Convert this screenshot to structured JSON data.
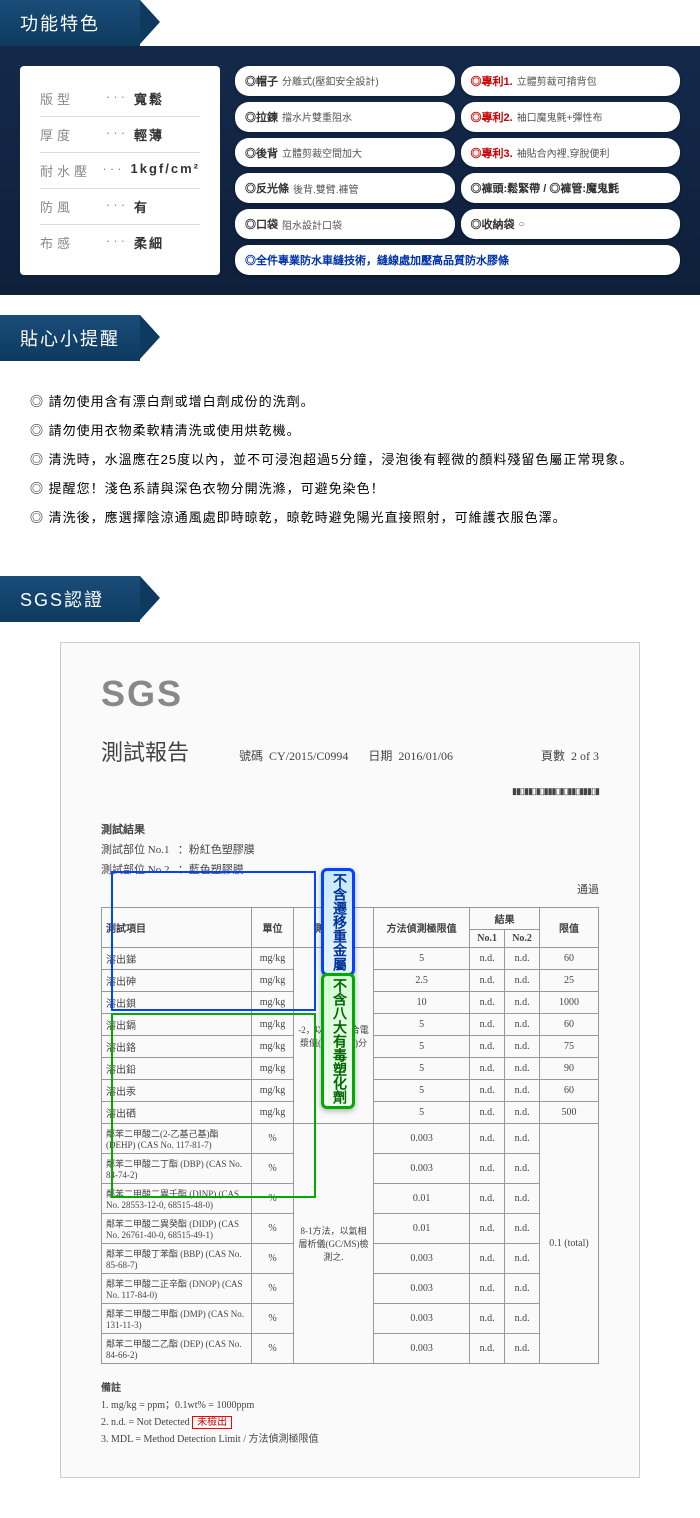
{
  "sections": {
    "features_title": "功能特色",
    "tips_title": "貼心小提醒",
    "sgs_title": "SGS認證"
  },
  "specs": [
    {
      "label": "版型",
      "value": "寬鬆"
    },
    {
      "label": "厚度",
      "value": "輕薄"
    },
    {
      "label": "耐水壓",
      "value": "1kgf/cm²"
    },
    {
      "label": "防風",
      "value": "有"
    },
    {
      "label": "布感",
      "value": "柔細"
    }
  ],
  "features_left": [
    {
      "t1": "◎帽子",
      "t2": "分離式(壓釦安全設計)"
    },
    {
      "t1": "◎拉鍊",
      "t2": "擋水片雙重阻水"
    },
    {
      "t1": "◎後背",
      "t2": "立體剪裁空間加大"
    },
    {
      "t1": "◎反光條",
      "t2": "後背.雙臂.褲管"
    },
    {
      "t1": "◎口袋",
      "t2": "阻水設計口袋"
    }
  ],
  "features_right": [
    {
      "t1": "◎專利1.",
      "t2": "立體剪裁可揹背包",
      "red": true
    },
    {
      "t1": "◎專利2.",
      "t2": "袖口魔鬼氈+彈性布",
      "red": true
    },
    {
      "t1": "◎專利3.",
      "t2": "袖貼合內裡,穿脫便利",
      "red": true
    },
    {
      "t1": "◎褲頭:鬆緊帶 / ◎褲管:魔鬼氈",
      "t2": ""
    },
    {
      "t1": "◎收納袋",
      "t2": "○"
    }
  ],
  "feature_wide": "◎全件專業防水車縫技術，縫線處加壓高品質防水膠條",
  "tips": [
    "請勿使用含有漂白劑或增白劑成份的洗劑。",
    "請勿使用衣物柔軟精清洗或使用烘乾機。",
    "清洗時，水溫應在25度以內，並不可浸泡超過5分鐘，浸泡後有輕微的顏料殘留色屬正常現象。",
    "提醒您！淺色系請與深色衣物分開洗滌，可避免染色！",
    "清洗後，應選擇陰涼通風處即時晾乾，晾乾時避免陽光直接照射，可維護衣服色澤。"
  ],
  "sgs": {
    "logo": "SGS",
    "report_title": "測試報告",
    "code_label": "號碼",
    "code": "CY/2015/C0994",
    "date_label": "日期",
    "date": "2016/01/06",
    "page_label": "頁數",
    "page": "2 of 3",
    "result_title": "測試結果",
    "part1_label": "測試部位 No.1",
    "part1_val": "：粉紅色塑膠膜",
    "part2_label": "測試部位 No.2",
    "part2_val": "：藍色塑膠膜",
    "end_text": "通過",
    "overlay_blue": "不含遷移重金屬",
    "overlay_green": "不含八大有毒塑化劑",
    "table_headers": {
      "item": "測試項目",
      "unit": "單位",
      "method": "測試方法",
      "mdl": "方法偵測極限值",
      "result": "結果",
      "no1": "No.1",
      "no2": "No.2",
      "limit": "限值"
    },
    "metals": [
      {
        "name": "溶出銻",
        "unit": "mg/kg",
        "mdl": "5",
        "r1": "n.d.",
        "r2": "n.d.",
        "lim": "60"
      },
      {
        "name": "溶出砷",
        "unit": "mg/kg",
        "mdl": "2.5",
        "r1": "n.d.",
        "r2": "n.d.",
        "lim": "25"
      },
      {
        "name": "溶出鋇",
        "unit": "mg/kg",
        "mdl": "10",
        "r1": "n.d.",
        "r2": "n.d.",
        "lim": "1000"
      },
      {
        "name": "溶出鎘",
        "unit": "mg/kg",
        "mdl": "5",
        "r1": "n.d.",
        "r2": "n.d.",
        "lim": "60"
      },
      {
        "name": "溶出鉻",
        "unit": "mg/kg",
        "mdl": "5",
        "r1": "n.d.",
        "r2": "n.d.",
        "lim": "75"
      },
      {
        "name": "溶出鉛",
        "unit": "mg/kg",
        "mdl": "5",
        "r1": "n.d.",
        "r2": "n.d.",
        "lim": "90"
      },
      {
        "name": "溶出汞",
        "unit": "mg/kg",
        "mdl": "5",
        "r1": "n.d.",
        "r2": "n.d.",
        "lim": "60"
      },
      {
        "name": "溶出硒",
        "unit": "mg/kg",
        "mdl": "5",
        "r1": "n.d.",
        "r2": "n.d.",
        "lim": "500"
      }
    ],
    "method_metals": "-2，以感應耦合電漿儀(ICP-AES)分",
    "phthalates": [
      {
        "name": "鄰苯二甲酸二(2-乙基己基)酯 (DEHP) (CAS No. 117-81-7)",
        "unit": "%",
        "mdl": "0.003",
        "r1": "n.d.",
        "r2": "n.d."
      },
      {
        "name": "鄰苯二甲酸二丁酯 (DBP) (CAS No. 84-74-2)",
        "unit": "%",
        "mdl": "0.003",
        "r1": "n.d.",
        "r2": "n.d."
      },
      {
        "name": "鄰苯二甲酸二異壬酯 (DINP) (CAS No. 28553-12-0, 68515-48-0)",
        "unit": "%",
        "mdl": "0.01",
        "r1": "n.d.",
        "r2": "n.d."
      },
      {
        "name": "鄰苯二甲酸二異癸酯 (DIDP) (CAS No. 26761-40-0, 68515-49-1)",
        "unit": "%",
        "mdl": "0.01",
        "r1": "n.d.",
        "r2": "n.d."
      },
      {
        "name": "鄰苯二甲酸丁苯酯 (BBP) (CAS No. 85-68-7)",
        "unit": "%",
        "mdl": "0.003",
        "r1": "n.d.",
        "r2": "n.d."
      },
      {
        "name": "鄰苯二甲酸二正辛酯 (DNOP) (CAS No. 117-84-0)",
        "unit": "%",
        "mdl": "0.003",
        "r1": "n.d.",
        "r2": "n.d."
      },
      {
        "name": "鄰苯二甲酸二甲酯 (DMP) (CAS No. 131-11-3)",
        "unit": "%",
        "mdl": "0.003",
        "r1": "n.d.",
        "r2": "n.d."
      },
      {
        "name": "鄰苯二甲酸二乙酯 (DEP) (CAS No. 84-66-2)",
        "unit": "%",
        "mdl": "0.003",
        "r1": "n.d.",
        "r2": "n.d."
      }
    ],
    "method_phthalates": "8-1方法，以氣相層析儀(GC/MS)檢測之.",
    "phthalate_limit": "0.1 (total)",
    "notes_title": "備註",
    "notes": [
      "1. mg/kg = ppm；0.1wt% = 1000ppm",
      "2. n.d. = Not Detected",
      "3. MDL = Method Detection Limit / 方法偵測極限值"
    ],
    "not_detected_box": "未檢出"
  }
}
